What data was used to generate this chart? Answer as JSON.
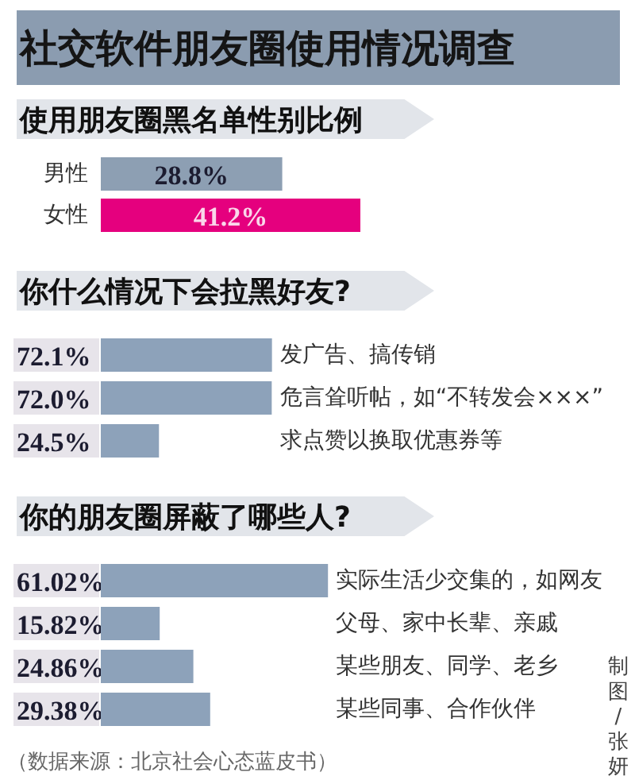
{
  "chart_data": [
    {
      "type": "bar",
      "orientation": "horizontal",
      "title": "社交软件朋友圈使用情况调查",
      "subtitle": "使用朋友圈黑名单性别比例",
      "categories": [
        "男性",
        "女性"
      ],
      "values": [
        28.8,
        41.2
      ],
      "value_labels": [
        "28.8%",
        "41.2%"
      ],
      "colors": [
        "#8d9fb3",
        "#e5007e"
      ]
    },
    {
      "type": "bar",
      "orientation": "horizontal",
      "title": "你什么情况下会拉黑好友?",
      "categories": [
        "发广告、搞传销",
        "危言耸听帖，如“不转发会×××”",
        "求点赞以换取优惠券等"
      ],
      "values": [
        72.1,
        72.0,
        24.5
      ],
      "value_labels": [
        "72.1%",
        "72.0%",
        "24.5%"
      ],
      "color": "#8da2ba"
    },
    {
      "type": "bar",
      "orientation": "horizontal",
      "title": "你的朋友圈屏蔽了哪些人?",
      "categories": [
        "实际生活少交集的，如网友",
        "父母、家中长辈、亲戚",
        "某些朋友、同学、老乡",
        "某些同事、合作伙伴"
      ],
      "values": [
        61.02,
        15.82,
        24.86,
        29.38
      ],
      "value_labels": [
        "61.02%",
        "15.82%",
        "24.86%",
        "29.38%"
      ],
      "color": "#8da2ba",
      "annotations": [
        "（数据来源：北京社会心态蓝皮书）",
        "制图/张妍"
      ]
    }
  ]
}
